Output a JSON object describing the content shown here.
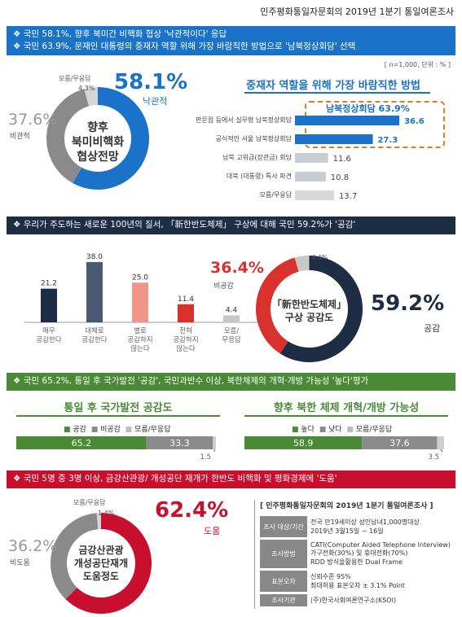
{
  "top_title": "민주평화통일자문회의 2019년 1분기 통일여론조사",
  "sec1": {
    "header_lines": [
      "❖  국민 58.1%, 향후 북미간 비핵화 협상 '낙관적이다' 응답",
      "❖  국민 63.9%, 문재인 대통령의 중재자 역할 위해 가장 바람직한 방법으로 '남북정상회담' 선택"
    ],
    "note": "[ n=1,000, 단위 : % ]",
    "donut": {
      "center": [
        "향후",
        "북미비핵화",
        "협상전망"
      ],
      "main_pct": "58.1%",
      "main_label": "낙관적",
      "neg_pct": "37.6%",
      "neg_label": "비관적",
      "dk_label": "모름/무응답",
      "dk_pct": "4.3%"
    },
    "bars_title": "중재자 역할을 위해 가장 바람직한 방법",
    "bracket_label": "남북정상회담  63.9%",
    "bars": [
      {
        "label": "판문점 등에서 실무형 남북정상회담",
        "value": 36.6,
        "value_text": "36.6",
        "color": "#1a73c8"
      },
      {
        "label": "공식적인 서울 남북정상회담",
        "value": 27.3,
        "value_text": "27.3",
        "color": "#1a73c8"
      },
      {
        "label": "남북 고위급(장관급) 회담",
        "value": 11.6,
        "value_text": "11.6",
        "color": "#c8ccd4"
      },
      {
        "label": "대북 (대통령) 특사 파견",
        "value": 10.8,
        "value_text": "10.8",
        "color": "#c8ccd4"
      },
      {
        "label": "모름/무응답",
        "value": 13.7,
        "value_text": "13.7",
        "color": "#d8d8d8"
      }
    ]
  },
  "sec2": {
    "header": "❖  우리가 주도하는 새로운 100년의 질서, 「新한반도체제」 구상에 대해 국민 59.2%가 '공감'",
    "bars": [
      {
        "label": [
          "매우",
          "공감한다"
        ],
        "value": 21.2,
        "value_text": "21.2",
        "color": "#1e2d44"
      },
      {
        "label": [
          "대체로",
          "공감한다"
        ],
        "value": 38.0,
        "value_text": "38.0",
        "color": "#4a5a72"
      },
      {
        "label": [
          "별로",
          "공감하지",
          "않는다"
        ],
        "value": 25.0,
        "value_text": "25.0",
        "color": "#f0958a"
      },
      {
        "label": [
          "전혀",
          "공감하지",
          "않는다"
        ],
        "value": 11.4,
        "value_text": "11.4",
        "color": "#d9322e"
      },
      {
        "label": [
          "모름/",
          "무응답"
        ],
        "value": 4.4,
        "value_text": "4.4",
        "color": "#c8c8c8"
      }
    ],
    "donut": {
      "center": [
        "「新한반도체제」",
        "구상 공감도"
      ],
      "main_pct": "59.2%",
      "main_label": "공감",
      "neg_pct": "36.4%",
      "neg_label": "비공감",
      "dk_pct": "4.4%"
    }
  },
  "sec3": {
    "header": "❖  국민 65.2%, 통일 후 국가발전 '공감', 국민과반수 이상, 북한체제의 개혁·개방 가능성 '높다'평가",
    "left": {
      "title": "통일 후 국가발전 공감도",
      "legend": [
        "공감",
        "비공감",
        "모름/무응답"
      ],
      "values": [
        65.2,
        33.3,
        1.5
      ],
      "texts": [
        "65.2",
        "33.3",
        "1.5"
      ]
    },
    "right": {
      "title": "향후 북한 체제 개혁/개방 가능성",
      "legend": [
        "높다",
        "낮다",
        "모름/무응답"
      ],
      "values": [
        58.9,
        37.6,
        3.5
      ],
      "texts": [
        "58.9",
        "37.6",
        "3.5"
      ]
    }
  },
  "sec4": {
    "header": "❖  국민 5명 중 3명 이상, 금강산관광/ 개성공단 재개가 한반도 비핵화 및 평화경제에 '도움'",
    "donut": {
      "center": [
        "금강산관광",
        "개성공단재개",
        "도움정도"
      ],
      "main_pct": "62.4%",
      "main_label": "도움",
      "neg_pct": "36.2%",
      "neg_label": "비도움",
      "dk_label": "모름/무응답",
      "dk_pct": "1.4%"
    },
    "info_title": "[ 민주평화통일자문회의 2019년 1분기 통일여론조사 ]",
    "info_rows": [
      {
        "label": "조사 대상/기간",
        "value": [
          "전국 만19세이상 성인남녀1,000명대상",
          "2019년 3월15일 ~ 16일"
        ]
      },
      {
        "label": "조사방법",
        "value": [
          "CATI(Computer Aided Telephone Interview)",
          "가구전화(30%) 및 휴대전화(70%)",
          "RDD 방식을활용한 Dual Frame"
        ]
      },
      {
        "label": "표본오차",
        "value": [
          "신뢰수준 95%",
          "최대허용 표본오차 ± 3.1% Point"
        ]
      },
      {
        "label": "조사기관",
        "value": [
          "(주)한국사회여론연구소(KSOI)"
        ]
      }
    ]
  },
  "chart_data": [
    {
      "type": "pie",
      "title": "향후 북미비핵화 협상전망",
      "categories": [
        "낙관적",
        "비관적",
        "모름/무응답"
      ],
      "values": [
        58.1,
        37.6,
        4.3
      ]
    },
    {
      "type": "bar",
      "title": "중재자 역할을 위해 가장 바람직한 방법",
      "categories": [
        "판문점 등에서 실무형 남북정상회담",
        "공식적인 서울 남북정상회담",
        "남북 고위급(장관급) 회담",
        "대북 (대통령) 특사 파견",
        "모름/무응답"
      ],
      "values": [
        36.6,
        27.3,
        11.6,
        10.8,
        13.7
      ]
    },
    {
      "type": "bar",
      "categories": [
        "매우 공감한다",
        "대체로 공감한다",
        "별로 공감하지 않는다",
        "전혀 공감하지 않는다",
        "모름/무응답"
      ],
      "values": [
        21.2,
        38.0,
        25.0,
        11.4,
        4.4
      ]
    },
    {
      "type": "pie",
      "title": "「新한반도체제」 구상 공감도",
      "categories": [
        "공감",
        "비공감",
        "모름/무응답"
      ],
      "values": [
        59.2,
        36.4,
        4.4
      ]
    },
    {
      "type": "bar",
      "title": "통일 후 국가발전 공감도",
      "categories": [
        "공감",
        "비공감",
        "모름/무응답"
      ],
      "values": [
        65.2,
        33.3,
        1.5
      ]
    },
    {
      "type": "bar",
      "title": "향후 북한 체제 개혁/개방 가능성",
      "categories": [
        "높다",
        "낮다",
        "모름/무응답"
      ],
      "values": [
        58.9,
        37.6,
        3.5
      ]
    },
    {
      "type": "pie",
      "title": "금강산관광 개성공단재개 도움정도",
      "categories": [
        "도움",
        "비도움",
        "모름/무응답"
      ],
      "values": [
        62.4,
        36.2,
        1.4
      ]
    }
  ],
  "colors": {
    "blue": "#1a73c8",
    "navy": "#1e2d44",
    "green": "#4a8a35",
    "red": "#c8102e",
    "gray": "#8a8a8a",
    "orange": "#e07a1f"
  }
}
